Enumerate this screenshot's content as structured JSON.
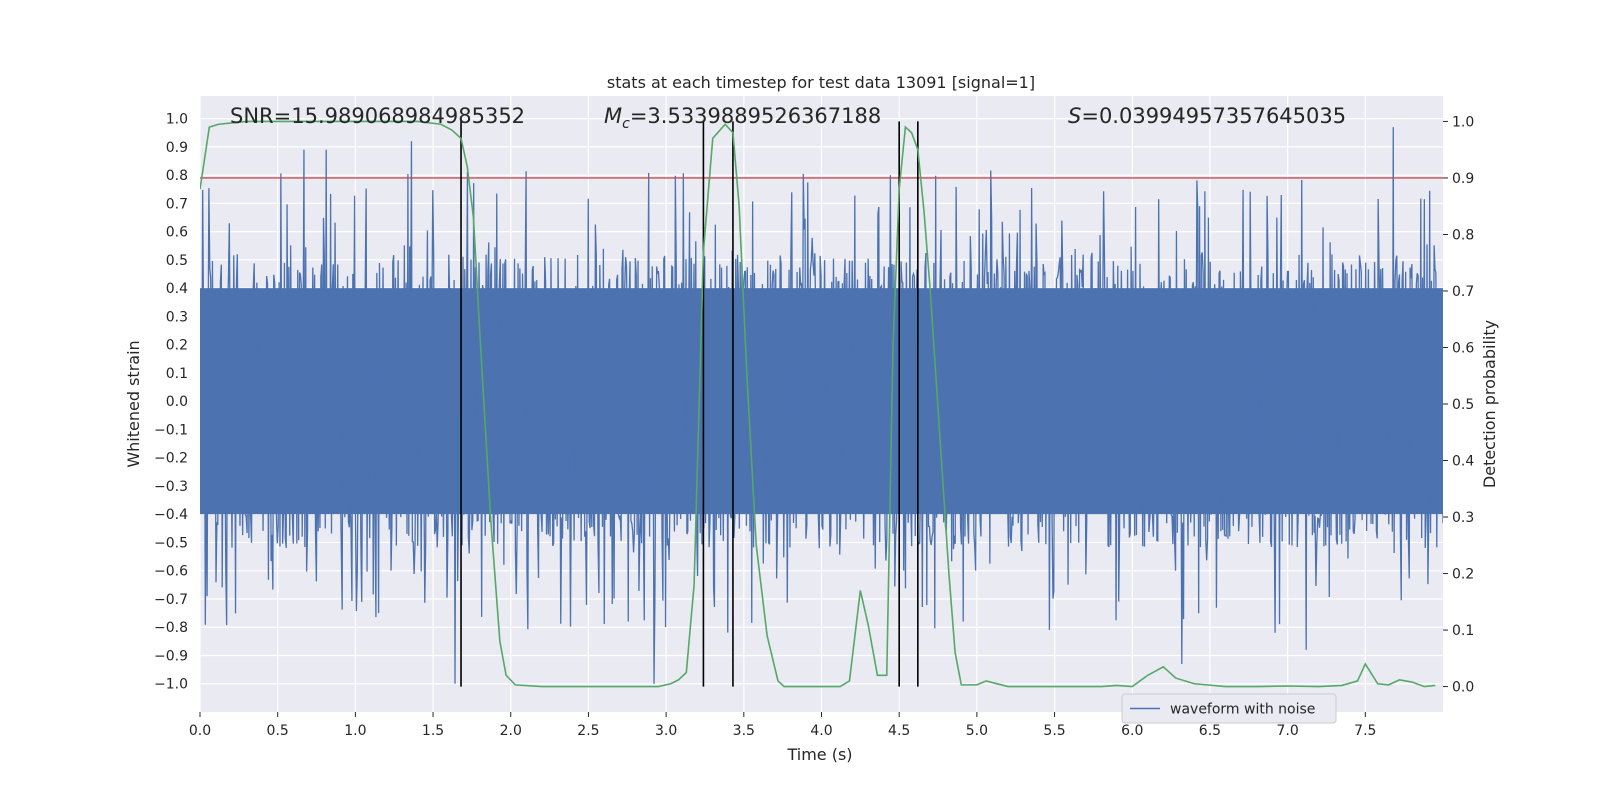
{
  "chart_data": {
    "type": "line",
    "title": "stats at each timestep for test data 13091 [signal=1]",
    "xlabel": "Time (s)",
    "ylabel": "Whitened strain",
    "y2label": "Detection probability",
    "xlim": [
      0,
      8
    ],
    "ylim": [
      -1.1,
      1.08
    ],
    "y2lim": [
      -0.045,
      1.045
    ],
    "x_ticks": [
      0.0,
      0.5,
      1.0,
      1.5,
      2.0,
      2.5,
      3.0,
      3.5,
      4.0,
      4.5,
      5.0,
      5.5,
      6.0,
      6.5,
      7.0,
      7.5
    ],
    "x_tick_labels": [
      "0.0",
      "0.5",
      "1.0",
      "1.5",
      "2.0",
      "2.5",
      "3.0",
      "3.5",
      "4.0",
      "4.5",
      "5.0",
      "5.5",
      "6.0",
      "6.5",
      "7.0",
      "7.5"
    ],
    "y_ticks": [
      -1.0,
      -0.9,
      -0.8,
      -0.7,
      -0.6,
      -0.5,
      -0.4,
      -0.3,
      -0.2,
      -0.1,
      0.0,
      0.1,
      0.2,
      0.3,
      0.4,
      0.5,
      0.6,
      0.7,
      0.8,
      0.9,
      1.0
    ],
    "y_tick_labels": [
      "−1.0",
      "−0.9",
      "−0.8",
      "−0.7",
      "−0.6",
      "−0.5",
      "−0.4",
      "−0.3",
      "−0.2",
      "−0.1",
      "0.0",
      "0.1",
      "0.2",
      "0.3",
      "0.4",
      "0.5",
      "0.6",
      "0.7",
      "0.8",
      "0.9",
      "1.0"
    ],
    "y2_ticks": [
      0.0,
      0.1,
      0.2,
      0.3,
      0.4,
      0.5,
      0.6,
      0.7,
      0.8,
      0.9,
      1.0
    ],
    "y2_tick_labels": [
      "0.0",
      "0.1",
      "0.2",
      "0.3",
      "0.4",
      "0.5",
      "0.6",
      "0.7",
      "0.8",
      "0.9",
      "1.0"
    ],
    "annotations": {
      "snr": "SNR=15.989068984985352",
      "mc_symbol": "M",
      "mc_subscript": "c",
      "mc_value": "=3.5339889526367188",
      "s_symbol": "S",
      "s_value": "=0.03994957357645035"
    },
    "legend": {
      "label": "waveform with noise",
      "position": "lower-right"
    },
    "threshold": {
      "value": 0.9,
      "axis": "y2"
    },
    "vertical_lines_x": [
      1.68,
      3.24,
      3.43,
      4.5,
      4.62
    ],
    "waveform": {
      "name": "waveform with noise",
      "sample_count": 1400,
      "core_amplitude": 0.4,
      "notable_peaks": [
        {
          "t": 0.67,
          "y": 0.89
        },
        {
          "t": 0.81,
          "y": 0.89
        },
        {
          "t": 1.36,
          "y": 0.92
        },
        {
          "t": 1.64,
          "y": -1.0
        },
        {
          "t": 2.92,
          "y": -1.0
        },
        {
          "t": 7.68,
          "y": 0.97
        },
        {
          "t": 6.32,
          "y": -0.93
        },
        {
          "t": 7.12,
          "y": -0.88
        }
      ]
    },
    "series": [
      {
        "name": "detection probability",
        "axis": "y2",
        "x": [
          0.0,
          0.06,
          0.12,
          0.3,
          0.6,
          1.0,
          1.4,
          1.55,
          1.62,
          1.68,
          1.72,
          1.76,
          1.8,
          1.87,
          1.93,
          1.97,
          2.03,
          2.2,
          2.6,
          2.95,
          3.03,
          3.08,
          3.13,
          3.18,
          3.24,
          3.3,
          3.38,
          3.43,
          3.47,
          3.52,
          3.58,
          3.65,
          3.72,
          3.76,
          3.82,
          4.0,
          4.12,
          4.18,
          4.25,
          4.3,
          4.36,
          4.42,
          4.46,
          4.5,
          4.54,
          4.58,
          4.62,
          4.66,
          4.7,
          4.76,
          4.82,
          4.86,
          4.9,
          4.95,
          5.0,
          5.06,
          5.2,
          5.5,
          5.8,
          5.9,
          6.0,
          6.1,
          6.2,
          6.28,
          6.4,
          6.6,
          6.8,
          7.0,
          7.2,
          7.35,
          7.45,
          7.5,
          7.58,
          7.65,
          7.72,
          7.8,
          7.88,
          7.95
        ],
        "y": [
          0.88,
          0.99,
          0.995,
          1.0,
          1.0,
          1.0,
          1.0,
          0.995,
          0.985,
          0.97,
          0.92,
          0.83,
          0.63,
          0.3,
          0.08,
          0.02,
          0.003,
          0.0,
          0.0,
          0.0,
          0.005,
          0.012,
          0.025,
          0.18,
          0.77,
          0.97,
          0.995,
          0.98,
          0.85,
          0.55,
          0.25,
          0.09,
          0.01,
          0.0,
          0.0,
          0.0,
          0.0,
          0.01,
          0.17,
          0.11,
          0.02,
          0.02,
          0.6,
          0.88,
          0.99,
          0.98,
          0.95,
          0.84,
          0.7,
          0.45,
          0.2,
          0.06,
          0.003,
          0.003,
          0.003,
          0.01,
          0.0,
          0.0,
          0.0,
          0.002,
          0.0,
          0.02,
          0.035,
          0.015,
          0.005,
          0.0,
          0.0,
          0.001,
          0.0,
          0.002,
          0.01,
          0.04,
          0.005,
          0.003,
          0.012,
          0.008,
          0.0,
          0.002
        ]
      }
    ]
  }
}
